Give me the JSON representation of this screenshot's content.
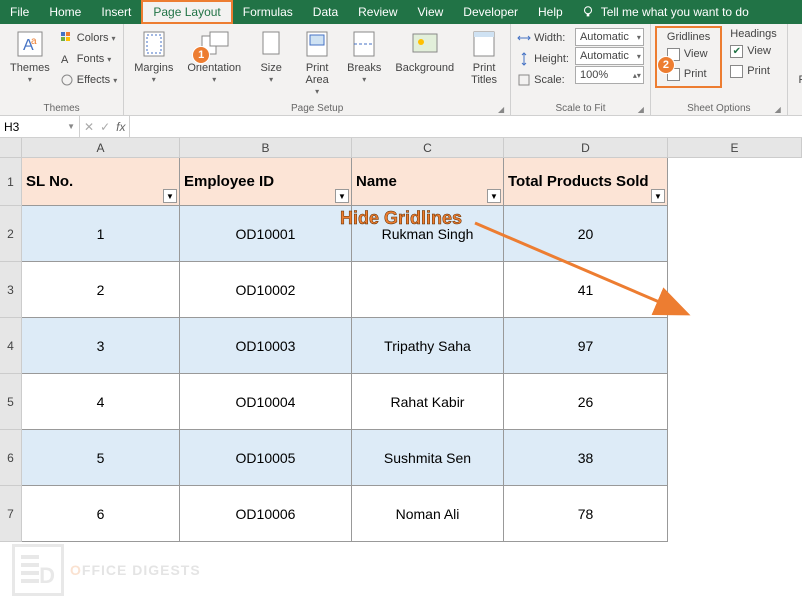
{
  "tabs": [
    "File",
    "Home",
    "Insert",
    "Page Layout",
    "Formulas",
    "Data",
    "Review",
    "View",
    "Developer",
    "Help"
  ],
  "active_tab": "Page Layout",
  "tellme": "Tell me what you want to do",
  "ribbon": {
    "themes": {
      "label": "Themes",
      "btn": "Themes",
      "colors": "Colors",
      "fonts": "Fonts",
      "effects": "Effects"
    },
    "pagesetup": {
      "label": "Page Setup",
      "margins": "Margins",
      "orientation": "Orientation",
      "size": "Size",
      "printarea": "Print\nArea",
      "breaks": "Breaks",
      "background": "Background",
      "printtitles": "Print\nTitles"
    },
    "scale": {
      "label": "Scale to Fit",
      "width": "Width:",
      "height": "Height:",
      "scale": "Scale:",
      "auto": "Automatic",
      "pct": "100%"
    },
    "sheet": {
      "label": "Sheet Options",
      "gridlines": "Gridlines",
      "headings": "Headings",
      "view": "View",
      "print": "Print"
    },
    "arrange": {
      "bring": "Brin\nForwa"
    }
  },
  "namebox": "H3",
  "columns": [
    "A",
    "B",
    "C",
    "D",
    "E"
  ],
  "headers": [
    "SL No.",
    "Employee ID",
    "Name",
    "Total Products Sold"
  ],
  "rows": [
    {
      "n": "1",
      "id": "OD10001",
      "name": "Rukman Singh",
      "sold": "20"
    },
    {
      "n": "2",
      "id": "OD10002",
      "name": "",
      "sold": "41"
    },
    {
      "n": "3",
      "id": "OD10003",
      "name": "Tripathy Saha",
      "sold": "97"
    },
    {
      "n": "4",
      "id": "OD10004",
      "name": "Rahat Kabir",
      "sold": "26"
    },
    {
      "n": "5",
      "id": "OD10005",
      "name": "Sushmita Sen",
      "sold": "38"
    },
    {
      "n": "6",
      "id": "OD10006",
      "name": "Noman Ali",
      "sold": "78"
    }
  ],
  "annotation": "Hide Gridlines",
  "callouts": {
    "1": "1",
    "2": "2"
  },
  "checks": {
    "gl_view": false,
    "gl_print": false,
    "hd_view": true,
    "hd_print": false
  },
  "watermark": {
    "brand": "FFICE",
    "suffix": "DIGESTS",
    "letter": "D"
  },
  "colors": {
    "green": "#217346",
    "orange": "#ed7d31",
    "hdrfill": "#fce4d6",
    "alt": "#ddebf7"
  }
}
